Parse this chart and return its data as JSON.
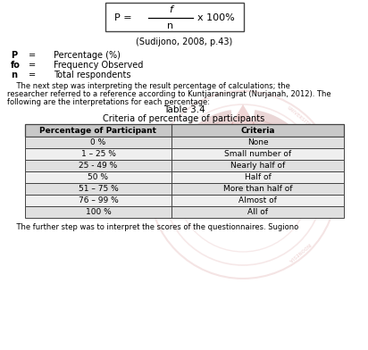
{
  "title": "Table 3.4",
  "subtitle": "Criteria of percentage of participants",
  "formula_f": "f",
  "formula_n": "n",
  "citation": "(Sudijono, 2008, p.43)",
  "col_headers": [
    "Percentage of Participant",
    "Criteria"
  ],
  "rows": [
    [
      "0 %",
      "None"
    ],
    [
      "1 – 25 %",
      "Small number of"
    ],
    [
      "25 - 49 %",
      "Nearly half of"
    ],
    [
      "50 %",
      "Half of"
    ],
    [
      "51 – 75 %",
      "More than half of"
    ],
    [
      "76 – 99 %",
      "Almost of"
    ],
    [
      "100 %",
      "All of"
    ]
  ],
  "bg_color": "#ffffff",
  "text_color": "#000000",
  "table_header_color": "#c8c8c8",
  "table_row_color": "#e0e0e0",
  "table_alt_row_color": "#efefef",
  "border_color": "#444444",
  "watermark_red": "#b03030",
  "watermark_dark": "#8b2020",
  "font_size_formula": 7,
  "font_size_body": 6,
  "font_size_table": 6,
  "font_size_title": 7.5,
  "font_size_subtitle": 7
}
